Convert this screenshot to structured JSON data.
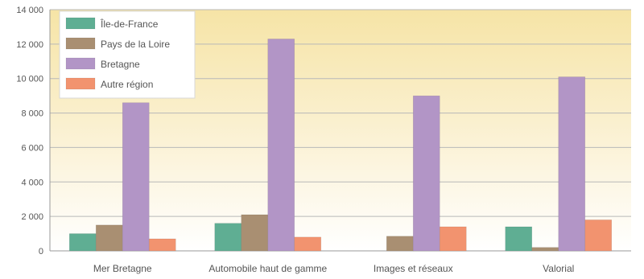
{
  "chart_data": {
    "type": "bar",
    "categories": [
      "Mer Bretagne",
      "Automobile haut de gamme",
      "Images et réseaux",
      "Valorial"
    ],
    "series": [
      {
        "name": "Île-de-France",
        "color": "#5fae93",
        "values": [
          1000,
          1600,
          0,
          1400
        ]
      },
      {
        "name": "Pays de la Loire",
        "color": "#a98f72",
        "values": [
          1500,
          2100,
          850,
          200
        ]
      },
      {
        "name": "Bretagne",
        "color": "#b295c6",
        "values": [
          8600,
          12300,
          9000,
          10100
        ]
      },
      {
        "name": "Autre région",
        "color": "#f2936f",
        "values": [
          700,
          800,
          1400,
          1800
        ]
      }
    ],
    "ylim": [
      0,
      14000
    ],
    "yticks": [
      "0",
      "2 000",
      "4 000",
      "6 000",
      "8 000",
      "10 000",
      "12 000",
      "14 000"
    ],
    "grid": true,
    "legend_position": "top-left"
  }
}
